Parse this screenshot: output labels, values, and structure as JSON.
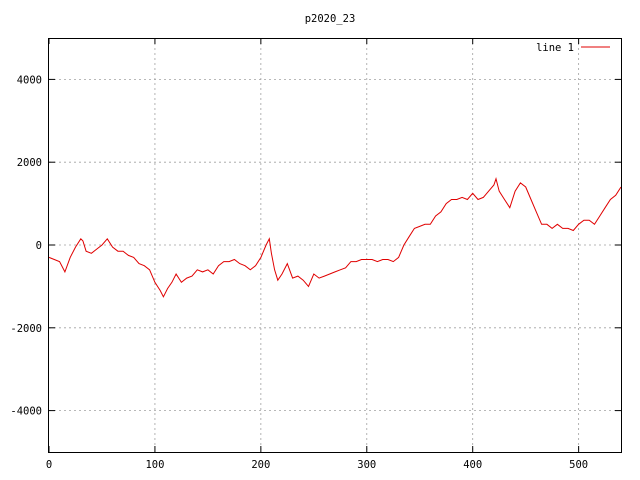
{
  "chart_data": {
    "type": "line",
    "title": "p2020_23",
    "xlabel": "",
    "ylabel": "",
    "xlim": [
      0,
      540
    ],
    "ylim": [
      -5000,
      5000
    ],
    "xticks": [
      0,
      100,
      200,
      300,
      400,
      500
    ],
    "yticks": [
      -4000,
      -2000,
      0,
      2000,
      4000
    ],
    "grid": true,
    "legend_position": "top-right",
    "series": [
      {
        "name": "line 1",
        "color": "#e00000",
        "x": [
          0,
          5,
          10,
          15,
          20,
          25,
          30,
          32,
          35,
          40,
          45,
          50,
          55,
          60,
          65,
          70,
          75,
          80,
          85,
          90,
          95,
          100,
          105,
          108,
          112,
          116,
          120,
          125,
          130,
          135,
          140,
          145,
          150,
          155,
          160,
          165,
          170,
          175,
          180,
          185,
          190,
          195,
          200,
          205,
          208,
          210,
          213,
          216,
          220,
          225,
          230,
          235,
          240,
          245,
          250,
          255,
          260,
          265,
          270,
          275,
          280,
          285,
          290,
          295,
          300,
          305,
          310,
          315,
          320,
          325,
          330,
          335,
          340,
          345,
          350,
          355,
          360,
          365,
          370,
          375,
          380,
          385,
          390,
          395,
          400,
          405,
          410,
          415,
          420,
          422,
          425,
          430,
          435,
          440,
          445,
          450,
          455,
          460,
          465,
          470,
          475,
          480,
          485,
          490,
          495,
          500,
          505,
          510,
          515,
          520,
          525,
          530,
          535,
          540
        ],
        "y": [
          -300,
          -350,
          -400,
          -650,
          -300,
          -50,
          150,
          100,
          -150,
          -200,
          -100,
          0,
          150,
          -50,
          -150,
          -150,
          -250,
          -300,
          -450,
          -500,
          -600,
          -900,
          -1100,
          -1250,
          -1050,
          -900,
          -700,
          -900,
          -800,
          -750,
          -600,
          -650,
          -600,
          -700,
          -500,
          -400,
          -400,
          -350,
          -450,
          -500,
          -600,
          -500,
          -300,
          0,
          150,
          -200,
          -600,
          -850,
          -700,
          -450,
          -800,
          -750,
          -850,
          -1000,
          -700,
          -800,
          -750,
          -700,
          -650,
          -600,
          -550,
          -400,
          -400,
          -350,
          -350,
          -350,
          -400,
          -350,
          -350,
          -400,
          -300,
          0,
          200,
          400,
          450,
          500,
          500,
          700,
          800,
          1000,
          1100,
          1100,
          1150,
          1100,
          1250,
          1100,
          1150,
          1300,
          1450,
          1600,
          1300,
          1100,
          900,
          1300,
          1500,
          1400,
          1100,
          800,
          500,
          500,
          400,
          500,
          400,
          400,
          350,
          500,
          600,
          600,
          500,
          700,
          900,
          1100,
          1200,
          1400
        ]
      }
    ]
  }
}
